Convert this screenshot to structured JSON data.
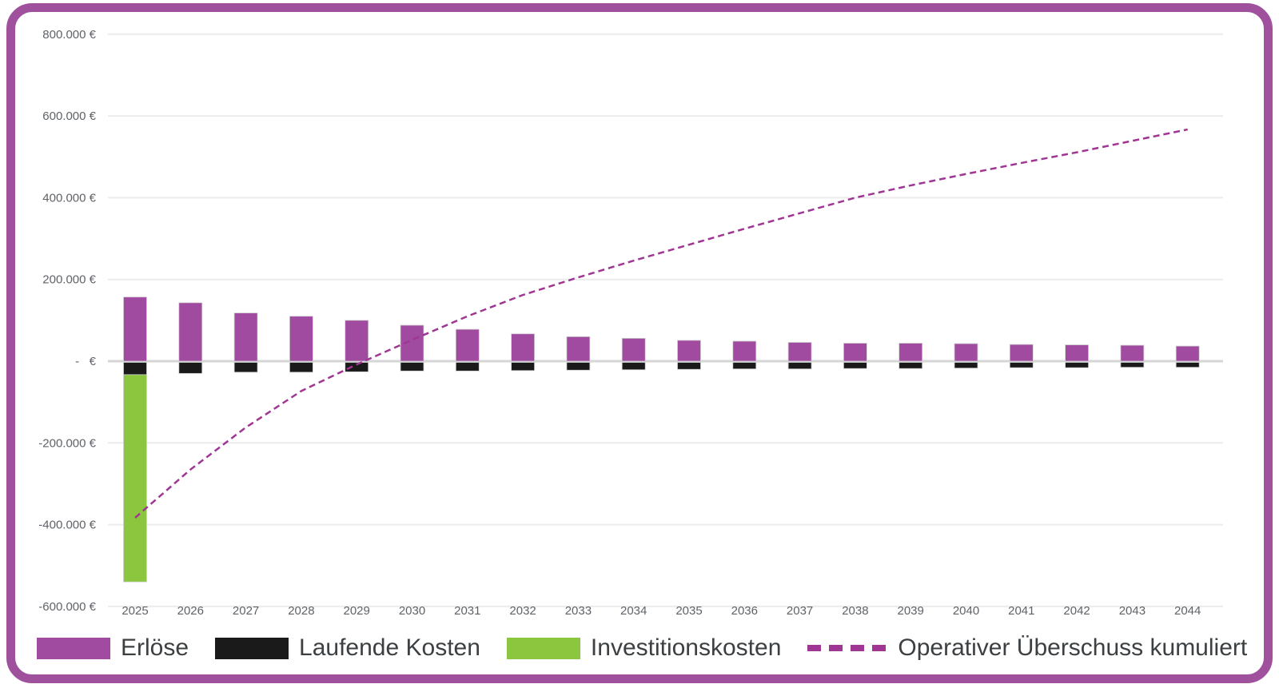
{
  "frame": {
    "border_color": "#a0519e",
    "background": "#ffffff"
  },
  "chart_data": {
    "type": "bar",
    "subtype": "stacked bars with dashed cumulative line overlay",
    "categories": [
      "2025",
      "2026",
      "2027",
      "2028",
      "2029",
      "2030",
      "2031",
      "2032",
      "2033",
      "2034",
      "2035",
      "2036",
      "2037",
      "2038",
      "2039",
      "2040",
      "2041",
      "2042",
      "2043",
      "2044"
    ],
    "series": [
      {
        "name": "Erlöse",
        "type": "bar",
        "color": "#a04ba0",
        "values": [
          157000,
          143000,
          118000,
          110000,
          100000,
          88000,
          78000,
          67000,
          60000,
          56000,
          51000,
          49000,
          46000,
          44000,
          44000,
          43000,
          41000,
          40000,
          39000,
          37000
        ]
      },
      {
        "name": "Laufende Kosten",
        "type": "bar",
        "color": "#1a1a1a",
        "values": [
          -33000,
          -30000,
          -27000,
          -27000,
          -26000,
          -24000,
          -24000,
          -23000,
          -22000,
          -21000,
          -20000,
          -19000,
          -19000,
          -18000,
          -18000,
          -17000,
          -16000,
          -16000,
          -15000,
          -15000
        ]
      },
      {
        "name": "Investitionskosten",
        "type": "bar",
        "color": "#8cc63f",
        "values": [
          -507000,
          0,
          0,
          0,
          0,
          0,
          0,
          0,
          0,
          0,
          0,
          0,
          0,
          0,
          0,
          0,
          0,
          0,
          0,
          0
        ]
      },
      {
        "name": "Operativer Überschuss kumuliert",
        "type": "line",
        "dashed": true,
        "color": "#a03693",
        "values": [
          -383000,
          -265000,
          -162000,
          -73000,
          -8000,
          52000,
          110000,
          162000,
          205000,
          246000,
          285000,
          324000,
          362000,
          400000,
          430000,
          458000,
          485000,
          511000,
          539000,
          567000
        ]
      }
    ],
    "y_ticks": [
      {
        "value": 800000,
        "label": "800.000 €"
      },
      {
        "value": 600000,
        "label": "600.000 €"
      },
      {
        "value": 400000,
        "label": "400.000 €"
      },
      {
        "value": 200000,
        "label": "200.000 €"
      },
      {
        "value": 0,
        "label": "-   €"
      },
      {
        "value": -200000,
        "label": "-200.000 €"
      },
      {
        "value": -400000,
        "label": "-400.000 €"
      },
      {
        "value": -600000,
        "label": "-600.000 €"
      }
    ],
    "ylim": [
      -650000,
      850000
    ],
    "grid": true,
    "legend_position": "bottom",
    "colors": {
      "grid": "#ececec",
      "zero_line": "#d6d6d6",
      "axis_text": "#5f6368",
      "bar_outline": "#d0d0d0"
    },
    "xlabel": "",
    "ylabel": "",
    "title": ""
  },
  "legend": {
    "items": [
      {
        "label": "Erlöse",
        "type": "bar",
        "color": "#a04ba0"
      },
      {
        "label": "Laufende Kosten",
        "type": "bar",
        "color": "#1a1a1a"
      },
      {
        "label": "Investitionskosten",
        "type": "bar",
        "color": "#8cc63f"
      },
      {
        "label": "Operativer Überschuss kumuliert",
        "type": "dashed-line",
        "color": "#a03693"
      }
    ]
  }
}
